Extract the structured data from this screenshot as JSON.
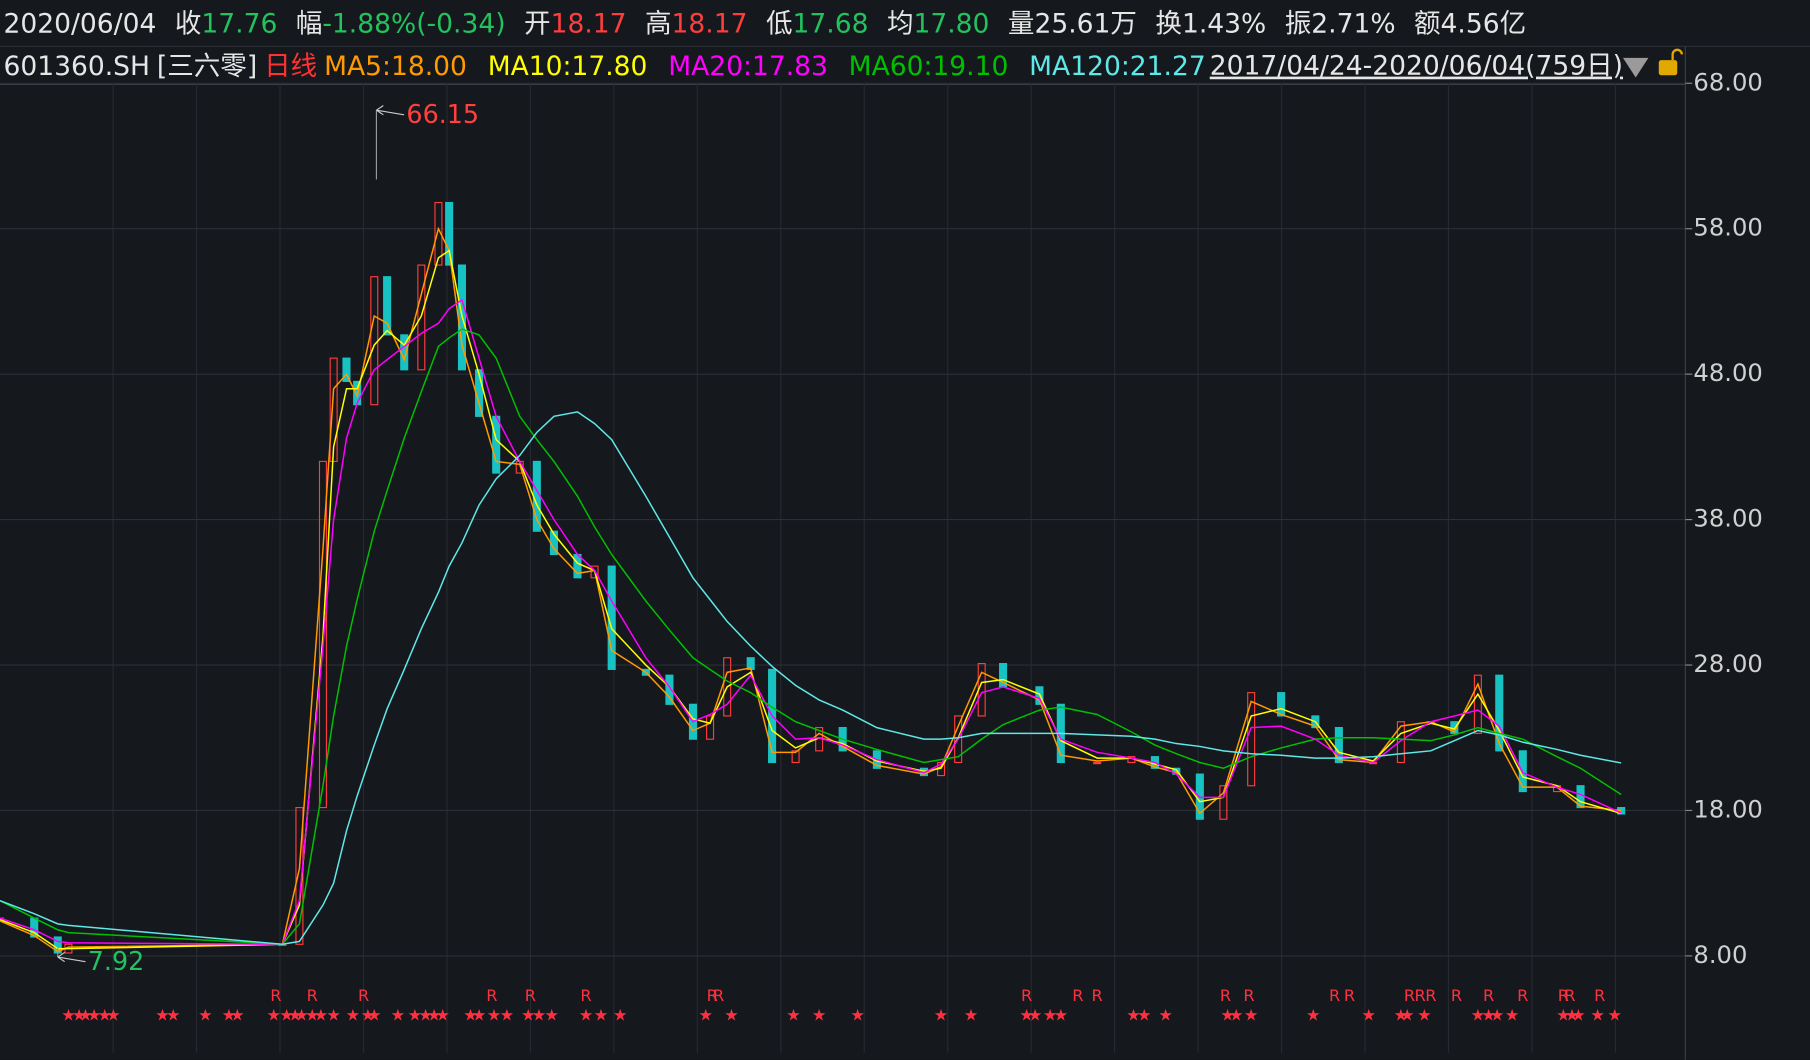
{
  "header": {
    "date": "2020/06/04",
    "items": [
      {
        "label": "收",
        "value": "17.76",
        "color": "#22c25e"
      },
      {
        "label": "幅",
        "value": "-1.88%(-0.34)",
        "color": "#22c25e"
      },
      {
        "label": "开",
        "value": "18.17",
        "color": "#ff3d3d"
      },
      {
        "label": "高",
        "value": "18.17",
        "color": "#ff3d3d"
      },
      {
        "label": "低",
        "value": "17.68",
        "color": "#22c25e"
      },
      {
        "label": "均",
        "value": "17.80",
        "color": "#22c25e"
      },
      {
        "label": "量",
        "value": "25.61万",
        "color": "#e6e6e6"
      },
      {
        "label": "换",
        "value": "1.43%",
        "color": "#e6e6e6"
      },
      {
        "label": "振",
        "value": "2.71%",
        "color": "#e6e6e6"
      },
      {
        "label": "额",
        "value": "4.56亿",
        "color": "#e6e6e6"
      }
    ]
  },
  "chart_data": {
    "type": "line",
    "code": "601360.SH",
    "name": "[三六零]",
    "period": "日线",
    "period_color": "#ff3232",
    "range": "2017/04/24-2020/06/04(759日)",
    "x": [
      0,
      16,
      27,
      32,
      132,
      140,
      151,
      156,
      162,
      167,
      175,
      181,
      189,
      197,
      205,
      210,
      216,
      224,
      232,
      243,
      251,
      259,
      270,
      278,
      286,
      302,
      313,
      324,
      332,
      340,
      351,
      361,
      372,
      383,
      394,
      410,
      432,
      440,
      448,
      459,
      469,
      486,
      496,
      513,
      529,
      540,
      550,
      561,
      572,
      585,
      599,
      615,
      626,
      642,
      655,
      669,
      680,
      691,
      701,
      712,
      728,
      739,
      758
    ],
    "xlim": [
      0,
      788
    ],
    "close": [
      10.6,
      9.3,
      8.2,
      8.8,
      8.8,
      18.2,
      42,
      49.1,
      47.5,
      45.9,
      54.7,
      50.7,
      48.3,
      55.5,
      59.8,
      55.5,
      48.3,
      45.1,
      41.2,
      42,
      37.2,
      35.6,
      34,
      34.8,
      27.7,
      27.3,
      25.3,
      22.9,
      24.5,
      28.5,
      27.7,
      21.3,
      22.1,
      23.7,
      22.1,
      20.9,
      20.4,
      21.3,
      24.5,
      28.1,
      26.5,
      25.3,
      21.3,
      21.3,
      21.7,
      20.9,
      20.5,
      17.4,
      19.7,
      26.1,
      24.5,
      23.7,
      21.3,
      21.3,
      24.1,
      24.1,
      23.3,
      27.3,
      22.1,
      19.3,
      19.7,
      18.2,
      17.76
    ],
    "up_color": "#ff3b3b",
    "down_color": "#19c2c2",
    "series": [
      {
        "name": "MA5:18.00",
        "color": "#ff9a00",
        "values": [
          10.4,
          9.4,
          8.3,
          8.6,
          8.8,
          14,
          36,
          47,
          48,
          46.5,
          52,
          51.5,
          49,
          53.5,
          58,
          56.5,
          50,
          46,
          42,
          41.8,
          38,
          36,
          34.3,
          34.5,
          29,
          27.5,
          25.8,
          23.5,
          24,
          27.5,
          27.8,
          22,
          22,
          23.3,
          22.4,
          21.1,
          20.5,
          21,
          23.8,
          27.5,
          26.8,
          25.6,
          21.8,
          21.4,
          21.6,
          21,
          20.6,
          17.8,
          19.2,
          25.5,
          24.6,
          23.8,
          21.5,
          21.3,
          23.8,
          24.1,
          23.4,
          26.7,
          22.6,
          19.6,
          19.6,
          18.3,
          18.0
        ]
      },
      {
        "name": "MA10:17.80",
        "color": "#ffff00",
        "values": [
          10.5,
          9.6,
          8.5,
          8.5,
          8.8,
          11.5,
          30,
          43,
          47,
          47,
          50,
          51,
          50,
          52,
          56,
          56.5,
          52,
          48,
          43.5,
          42,
          39,
          37,
          35,
          34.5,
          30.5,
          28,
          26.5,
          24.3,
          24,
          26.5,
          27.5,
          23.5,
          22.3,
          23,
          22.6,
          21.4,
          20.7,
          20.9,
          23,
          26.8,
          27,
          26,
          22.8,
          21.6,
          21.6,
          21.2,
          20.8,
          18.6,
          18.9,
          24.5,
          25,
          24.1,
          22,
          21.4,
          23.3,
          24,
          23.6,
          26,
          23.5,
          20.3,
          19.7,
          18.6,
          17.8
        ]
      },
      {
        "name": "MA20:17.83",
        "color": "#ff00ff",
        "values": [
          10.6,
          9.8,
          9.0,
          8.9,
          8.8,
          11.8,
          29.3,
          38,
          43.6,
          46,
          48.3,
          49,
          49.9,
          50.8,
          51.5,
          52.5,
          53.1,
          49.1,
          45.1,
          42,
          40,
          38,
          35.6,
          34.5,
          32.4,
          28.5,
          26.5,
          24.1,
          24.6,
          25.3,
          27.3,
          24.5,
          22.9,
          23,
          22.5,
          21.5,
          20.6,
          21.2,
          22.9,
          26.1,
          26.5,
          25.7,
          22.9,
          22,
          21.6,
          21.3,
          20.5,
          18.9,
          18.9,
          23.7,
          23.8,
          22.9,
          21.8,
          21.3,
          22.8,
          24.1,
          24.5,
          24.9,
          23.8,
          20.6,
          19.6,
          19.1,
          17.83
        ]
      },
      {
        "name": "MA60:19.10",
        "color": "#00c000",
        "values": [
          11.8,
          10.6,
          9.8,
          9.6,
          8.8,
          10.2,
          19.7,
          24.5,
          29.3,
          32.5,
          37.2,
          40,
          43.6,
          46.8,
          49.9,
          50.5,
          51.1,
          50.7,
          49.1,
          45.1,
          43.5,
          42,
          39.6,
          37.5,
          35.6,
          32.4,
          30.4,
          28.5,
          27.7,
          26.9,
          26.1,
          25.1,
          24.1,
          23.5,
          22.9,
          22.2,
          21.3,
          21.5,
          21.7,
          22.9,
          23.9,
          24.9,
          25.1,
          24.6,
          23.4,
          22.5,
          21.9,
          21.3,
          20.9,
          21.7,
          22.3,
          22.9,
          23,
          23,
          22.9,
          22.8,
          23.2,
          23.7,
          23.3,
          22.9,
          21.7,
          20.9,
          19.1
        ]
      },
      {
        "name": "MA120:21.27",
        "color": "#5fe8e8",
        "values": [
          11.8,
          10.9,
          10.2,
          10.1,
          8.8,
          9.0,
          11.5,
          13,
          16.6,
          19,
          22.5,
          25,
          27.7,
          30.5,
          33,
          34.8,
          36.4,
          39,
          40.8,
          42.4,
          44,
          45.1,
          45.4,
          44.6,
          43.5,
          39.6,
          36.8,
          34,
          32.5,
          31,
          29.3,
          27.9,
          26.6,
          25.6,
          24.9,
          23.7,
          22.9,
          22.9,
          23,
          23.3,
          23.3,
          23.3,
          23.3,
          23.2,
          23.1,
          22.9,
          22.6,
          22.4,
          22.1,
          21.9,
          21.8,
          21.6,
          21.6,
          21.7,
          21.9,
          22.1,
          22.8,
          23.5,
          23.2,
          22.7,
          22.2,
          21.8,
          21.27
        ]
      }
    ],
    "ylim": [
      1.33,
      68
    ],
    "yticks": [
      {
        "value": 8,
        "label": "8.00"
      },
      {
        "value": 18,
        "label": "18.00"
      },
      {
        "value": 28,
        "label": "28.00"
      },
      {
        "value": 38,
        "label": "38.00"
      },
      {
        "value": 48,
        "label": "48.00"
      },
      {
        "value": 58,
        "label": "58.00"
      },
      {
        "value": 68,
        "label": "68.00"
      }
    ],
    "grid": true,
    "annotations": [
      {
        "x": 176,
        "value": 66.15,
        "color": "#ff4040"
      },
      {
        "x": 27,
        "value": 7.92,
        "color": "#22c25e"
      }
    ],
    "signals": {
      "star": "★",
      "r": "R",
      "color": "#ff3040",
      "star_x": [
        32,
        37,
        40,
        44,
        49,
        53,
        76,
        81,
        96,
        107,
        111,
        128,
        134,
        138,
        141,
        146,
        150,
        156,
        165,
        172,
        175,
        186,
        194,
        199,
        203,
        207,
        220,
        224,
        231,
        237,
        247,
        252,
        258,
        274,
        281,
        290,
        330,
        342,
        371,
        383,
        401,
        440,
        454,
        480,
        484,
        491,
        496,
        530,
        535,
        545,
        574,
        578,
        585,
        614,
        640,
        655,
        658,
        666,
        691,
        696,
        700,
        707,
        731,
        735,
        738,
        747,
        755
      ],
      "r_x": [
        129,
        146,
        170,
        230,
        248,
        274,
        333,
        336,
        480,
        504,
        513,
        573,
        584,
        624,
        631,
        659,
        664,
        669,
        681,
        696,
        712,
        731,
        734,
        748
      ]
    }
  }
}
